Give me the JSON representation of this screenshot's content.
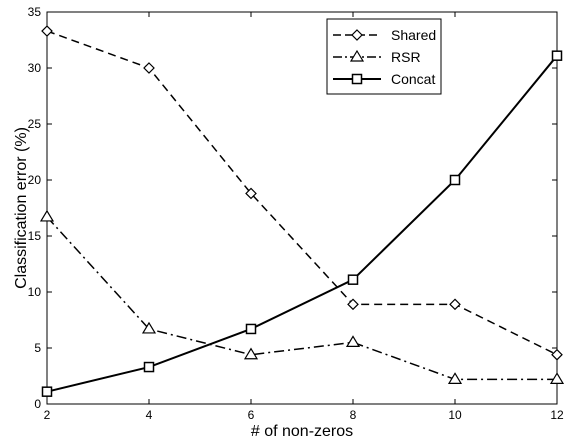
{
  "chart_data": {
    "type": "line",
    "xlabel": "# of non-zeros",
    "ylabel": "Classification error (%)",
    "x": [
      2,
      4,
      6,
      8,
      10,
      12
    ],
    "xlim": [
      2,
      12
    ],
    "ylim": [
      0,
      35
    ],
    "xticks": [
      "2",
      "4",
      "6",
      "8",
      "10",
      "12"
    ],
    "yticks": [
      "0",
      "5",
      "10",
      "15",
      "20",
      "25",
      "30",
      "35"
    ],
    "grid": false,
    "legend_position": "top-right",
    "series": [
      {
        "name": "Shared",
        "values": [
          33.3,
          30.0,
          18.8,
          8.9,
          8.9,
          4.4
        ],
        "line_style": "dashed",
        "marker": "diamond",
        "color": "#000000"
      },
      {
        "name": "RSR",
        "values": [
          16.7,
          6.7,
          4.4,
          5.5,
          2.2,
          2.2
        ],
        "line_style": "dash-dot",
        "marker": "triangle",
        "color": "#000000"
      },
      {
        "name": "Concat",
        "values": [
          1.1,
          3.3,
          6.7,
          11.1,
          20.0,
          31.1
        ],
        "line_style": "solid",
        "marker": "square",
        "color": "#000000"
      }
    ]
  }
}
